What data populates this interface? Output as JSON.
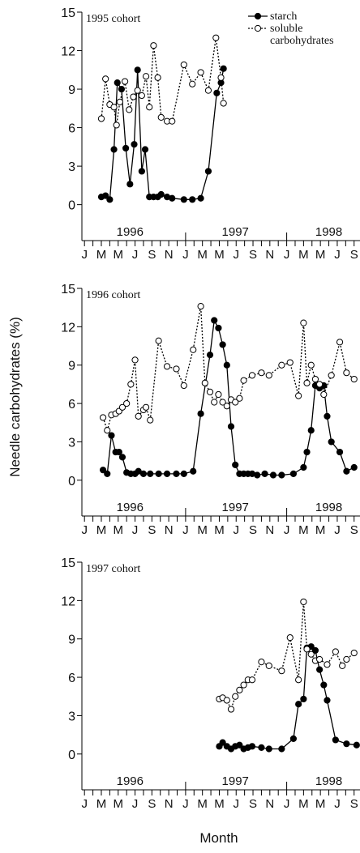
{
  "y_label": "Needle carbohydrates (%)",
  "x_label": "Month",
  "chart_data": [
    {
      "type": "line",
      "title": "1995 cohort",
      "legend": "upper right",
      "xlim": [
        -0.5,
        32.7
      ],
      "ylim": [
        -2.8,
        15
      ],
      "yticks": [
        0,
        3,
        6,
        9,
        12,
        15
      ],
      "xticks": [
        {
          "value": 0,
          "label": "J"
        },
        {
          "value": 2,
          "label": "M"
        },
        {
          "value": 4,
          "label": "M"
        },
        {
          "value": 6,
          "label": "J"
        },
        {
          "value": 8,
          "label": "S"
        },
        {
          "value": 10,
          "label": "N"
        },
        {
          "value": 12,
          "label": "J"
        },
        {
          "value": 14,
          "label": "M"
        },
        {
          "value": 16,
          "label": "M"
        },
        {
          "value": 18,
          "label": "J"
        },
        {
          "value": 20,
          "label": "S"
        },
        {
          "value": 22,
          "label": "N"
        },
        {
          "value": 24,
          "label": "J"
        },
        {
          "value": 26,
          "label": "M"
        },
        {
          "value": 28,
          "label": "M"
        },
        {
          "value": 30,
          "label": "J"
        },
        {
          "value": 32,
          "label": "S"
        }
      ],
      "minor_xticks": [
        1,
        3,
        5,
        7,
        9,
        11,
        13,
        15,
        17,
        19,
        21,
        23,
        25,
        27,
        29,
        31
      ],
      "year_ticks": [
        12,
        24
      ],
      "year_labels": [
        {
          "value": 5.4,
          "label": "1996"
        },
        {
          "value": 17.9,
          "label": "1997"
        },
        {
          "value": 29.0,
          "label": "1998"
        }
      ],
      "series": [
        {
          "name": "starch",
          "color": "#000000",
          "marker": "filled",
          "linestyle": "solid",
          "x": [
            2.0,
            2.5,
            3.0,
            3.5,
            3.9,
            4.4,
            4.9,
            5.4,
            5.9,
            6.3,
            6.8,
            7.2,
            7.7,
            8.2,
            8.7,
            9.1,
            9.8,
            10.4,
            11.8,
            12.8,
            13.8,
            14.7,
            15.7,
            16.2,
            16.5
          ],
          "values": [
            0.6,
            0.7,
            0.4,
            4.3,
            9.5,
            9.0,
            4.4,
            1.6,
            4.7,
            10.5,
            2.6,
            4.3,
            0.6,
            0.6,
            0.6,
            0.8,
            0.6,
            0.5,
            0.4,
            0.4,
            0.5,
            2.6,
            8.7,
            9.5,
            10.6
          ]
        },
        {
          "name": "soluble carbohydrates",
          "color": "#000000",
          "marker": "open",
          "linestyle": "dotted",
          "x": [
            2.0,
            2.5,
            3.0,
            3.5,
            3.8,
            4.2,
            4.8,
            5.3,
            5.8,
            6.3,
            6.8,
            7.3,
            7.7,
            8.2,
            8.7,
            9.1,
            9.8,
            10.4,
            11.8,
            12.8,
            13.8,
            14.7,
            15.6,
            16.2,
            16.5
          ],
          "values": [
            6.7,
            9.8,
            7.8,
            7.6,
            6.2,
            8.0,
            9.6,
            7.4,
            8.4,
            8.9,
            8.5,
            10.0,
            7.6,
            12.4,
            9.9,
            6.8,
            6.5,
            6.5,
            10.9,
            9.4,
            10.3,
            8.9,
            13.0,
            9.9,
            7.9
          ]
        }
      ]
    },
    {
      "type": "line",
      "title": "1996 cohort",
      "xlim": [
        -0.5,
        32.7
      ],
      "ylim": [
        -2.8,
        15
      ],
      "yticks": [
        0,
        3,
        6,
        9,
        12,
        15
      ],
      "xticks": [
        {
          "value": 0,
          "label": "J"
        },
        {
          "value": 2,
          "label": "M"
        },
        {
          "value": 4,
          "label": "M"
        },
        {
          "value": 6,
          "label": "J"
        },
        {
          "value": 8,
          "label": "S"
        },
        {
          "value": 10,
          "label": "N"
        },
        {
          "value": 12,
          "label": "J"
        },
        {
          "value": 14,
          "label": "M"
        },
        {
          "value": 16,
          "label": "M"
        },
        {
          "value": 18,
          "label": "J"
        },
        {
          "value": 20,
          "label": "S"
        },
        {
          "value": 22,
          "label": "N"
        },
        {
          "value": 24,
          "label": "J"
        },
        {
          "value": 26,
          "label": "M"
        },
        {
          "value": 28,
          "label": "M"
        },
        {
          "value": 30,
          "label": "J"
        },
        {
          "value": 32,
          "label": "S"
        }
      ],
      "minor_xticks": [
        1,
        3,
        5,
        7,
        9,
        11,
        13,
        15,
        17,
        19,
        21,
        23,
        25,
        27,
        29,
        31
      ],
      "year_ticks": [
        12,
        24
      ],
      "year_labels": [
        {
          "value": 5.4,
          "label": "1996"
        },
        {
          "value": 17.9,
          "label": "1997"
        },
        {
          "value": 29.0,
          "label": "1998"
        }
      ],
      "series": [
        {
          "color": "#000000",
          "marker": "filled",
          "linestyle": "solid",
          "x": [
            2.2,
            2.7,
            3.2,
            3.7,
            4.1,
            4.5,
            5.0,
            5.5,
            6.0,
            6.4,
            7.0,
            7.8,
            8.8,
            9.8,
            10.9,
            11.8,
            12.9,
            13.8,
            14.9,
            15.4,
            15.9,
            16.4,
            16.9,
            17.4,
            17.9,
            18.4,
            18.9,
            19.4,
            19.9,
            20.5,
            21.4,
            22.4,
            23.4,
            24.8,
            26.0,
            26.4,
            26.9,
            27.4,
            27.9,
            28.4,
            28.8,
            29.3,
            30.3,
            31.1,
            32.0
          ],
          "values": [
            0.8,
            0.5,
            3.5,
            2.2,
            2.2,
            1.8,
            0.6,
            0.5,
            0.5,
            0.7,
            0.5,
            0.5,
            0.5,
            0.5,
            0.5,
            0.5,
            0.7,
            5.2,
            9.8,
            12.5,
            11.9,
            10.6,
            9.0,
            4.2,
            1.2,
            0.5,
            0.5,
            0.5,
            0.5,
            0.4,
            0.5,
            0.4,
            0.4,
            0.5,
            1.0,
            2.2,
            3.9,
            7.4,
            7.2,
            7.4,
            5.0,
            3.0,
            2.2,
            0.7,
            1.0
          ]
        },
        {
          "color": "#000000",
          "marker": "open",
          "linestyle": "dotted",
          "x": [
            2.2,
            2.7,
            3.2,
            3.7,
            4.1,
            4.5,
            5.0,
            5.5,
            6.0,
            6.4,
            7.0,
            7.3,
            7.8,
            8.8,
            9.8,
            10.9,
            11.8,
            12.9,
            13.8,
            14.3,
            14.9,
            15.4,
            15.9,
            16.4,
            16.9,
            17.4,
            17.9,
            18.4,
            18.9,
            19.9,
            21.0,
            21.9,
            23.4,
            24.4,
            25.4,
            26.0,
            26.4,
            26.9,
            27.4,
            27.9,
            28.4,
            29.3,
            30.3,
            31.1,
            32.0
          ],
          "values": [
            4.9,
            3.9,
            5.1,
            5.2,
            5.4,
            5.7,
            6.0,
            7.5,
            9.4,
            5.0,
            5.5,
            5.7,
            4.7,
            10.9,
            8.9,
            8.7,
            7.4,
            10.2,
            13.6,
            7.6,
            6.9,
            6.1,
            6.7,
            6.1,
            5.8,
            6.3,
            6.1,
            6.4,
            7.8,
            8.2,
            8.4,
            8.2,
            9.0,
            9.2,
            6.6,
            12.3,
            7.6,
            9.0,
            7.9,
            7.5,
            6.7,
            8.2,
            10.8,
            8.4,
            7.9
          ]
        }
      ]
    },
    {
      "type": "line",
      "title": "1997 cohort",
      "xlim": [
        -0.5,
        32.7
      ],
      "ylim": [
        -2.8,
        15
      ],
      "yticks": [
        0,
        3,
        6,
        9,
        12,
        15
      ],
      "xticks": [
        {
          "value": 0,
          "label": "J"
        },
        {
          "value": 2,
          "label": "M"
        },
        {
          "value": 4,
          "label": "M"
        },
        {
          "value": 6,
          "label": "J"
        },
        {
          "value": 8,
          "label": "S"
        },
        {
          "value": 10,
          "label": "N"
        },
        {
          "value": 12,
          "label": "J"
        },
        {
          "value": 14,
          "label": "M"
        },
        {
          "value": 16,
          "label": "M"
        },
        {
          "value": 18,
          "label": "J"
        },
        {
          "value": 20,
          "label": "S"
        },
        {
          "value": 22,
          "label": "N"
        },
        {
          "value": 24,
          "label": "J"
        },
        {
          "value": 26,
          "label": "M"
        },
        {
          "value": 28,
          "label": "M"
        },
        {
          "value": 30,
          "label": "J"
        },
        {
          "value": 32,
          "label": "S"
        }
      ],
      "minor_xticks": [
        1,
        3,
        5,
        7,
        9,
        11,
        13,
        15,
        17,
        19,
        21,
        23,
        25,
        27,
        29,
        31
      ],
      "year_ticks": [
        12,
        24
      ],
      "year_labels": [
        {
          "value": 5.4,
          "label": "1996"
        },
        {
          "value": 17.9,
          "label": "1997"
        },
        {
          "value": 29.0,
          "label": "1998"
        }
      ],
      "series": [
        {
          "color": "#000000",
          "marker": "filled",
          "linestyle": "solid",
          "x": [
            16.0,
            16.4,
            16.9,
            17.4,
            17.9,
            18.4,
            18.9,
            19.4,
            19.9,
            21.0,
            21.9,
            23.4,
            24.8,
            25.4,
            26.0,
            26.4,
            26.9,
            27.4,
            27.9,
            28.4,
            28.8,
            29.8,
            31.1,
            32.3
          ],
          "values": [
            0.6,
            0.9,
            0.6,
            0.4,
            0.6,
            0.7,
            0.4,
            0.5,
            0.6,
            0.5,
            0.4,
            0.4,
            1.2,
            3.9,
            4.3,
            8.3,
            8.4,
            8.1,
            6.6,
            5.4,
            4.2,
            1.1,
            0.8,
            0.7
          ]
        },
        {
          "color": "#000000",
          "marker": "open",
          "linestyle": "dotted",
          "x": [
            16.0,
            16.4,
            16.9,
            17.4,
            17.9,
            18.4,
            18.9,
            19.4,
            19.9,
            21.0,
            21.9,
            23.4,
            24.4,
            25.4,
            26.0,
            26.4,
            26.9,
            27.4,
            27.9,
            28.8,
            29.8,
            30.6,
            31.1,
            32.0
          ],
          "values": [
            4.3,
            4.4,
            4.2,
            3.5,
            4.5,
            5.0,
            5.4,
            5.8,
            5.8,
            7.2,
            6.9,
            6.5,
            9.1,
            5.8,
            11.9,
            8.2,
            7.8,
            7.3,
            7.4,
            7.0,
            8.0,
            6.9,
            7.4,
            7.9
          ]
        }
      ]
    }
  ]
}
